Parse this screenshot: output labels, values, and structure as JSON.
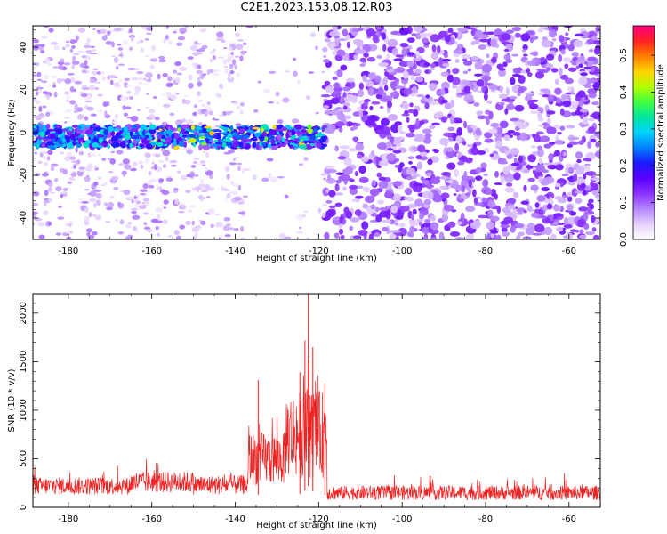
{
  "title": "C2E1.2023.153.08.12.R03",
  "colors": {
    "snr_line": "#ee2222",
    "colormap": [
      "#ffffff",
      "#e6d2ff",
      "#b585ff",
      "#8a33ff",
      "#5a00ff",
      "#1a1aff",
      "#0080ff",
      "#00d2ff",
      "#00e6a0",
      "#40ff40",
      "#b4ff00",
      "#ffd400",
      "#ff7f00",
      "#ff2020",
      "#ff0080"
    ]
  },
  "chart_data": [
    {
      "type": "heatmap",
      "xlabel": "Height of straight line (km)",
      "ylabel": "Frequency (Hz)",
      "xlim": [
        -188.5,
        -52.5
      ],
      "ylim": [
        -50,
        50
      ],
      "x_ticks": [
        -180,
        -160,
        -140,
        -120,
        -100,
        -80,
        -60
      ],
      "x_tick_labels": [
        "-180",
        "-160",
        "-140",
        "-120",
        "-100",
        "-80",
        "-60"
      ],
      "y_ticks": [
        -40,
        -20,
        0,
        20,
        40
      ],
      "y_tick_labels": [
        "-40",
        "-20",
        "0",
        "20",
        "40"
      ],
      "colorbar": {
        "label": "Normalized spectral amplitude",
        "range": [
          0,
          0.58
        ],
        "ticks": [
          0.0,
          0.1,
          0.2,
          0.3,
          0.4,
          0.5
        ],
        "tick_labels": [
          "0.0",
          "0.1",
          "0.2",
          "0.3",
          "0.4",
          "0.5"
        ]
      },
      "features": {
        "signal_band": {
          "x_start": -188.5,
          "x_end": -118.5,
          "freq_center": -2,
          "freq_halfwidth": 5,
          "typical_amplitude": 0.28,
          "peak_amplitude": 0.45
        },
        "clear_gap": {
          "x_start": -138,
          "x_end": -119
        },
        "sparse_region_amplitude": 0.06,
        "dense_region": {
          "x_start": -118.5,
          "x_end": -52.5,
          "typical_amplitude": 0.1
        }
      }
    },
    {
      "type": "line",
      "xlabel": "Height of straight line (km)",
      "ylabel": "SNR (10 * v/v)",
      "xlim": [
        -188.5,
        -52.5
      ],
      "ylim": [
        0,
        2200
      ],
      "x_ticks": [
        -180,
        -160,
        -140,
        -120,
        -100,
        -80,
        -60
      ],
      "x_tick_labels": [
        "-180",
        "-160",
        "-140",
        "-120",
        "-100",
        "-80",
        "-60"
      ],
      "y_ticks": [
        0,
        500,
        1000,
        1500,
        2000
      ],
      "y_tick_labels": [
        "0",
        "500",
        "1000",
        "1500",
        "2000"
      ],
      "segments": [
        {
          "x_start": -188.5,
          "x_end": -165,
          "baseline": 220,
          "spread": 180,
          "max": 480
        },
        {
          "x_start": -165,
          "x_end": -150,
          "baseline": 260,
          "spread": 220,
          "max": 650
        },
        {
          "x_start": -150,
          "x_end": -137,
          "baseline": 230,
          "spread": 200,
          "max": 550
        },
        {
          "x_start": -137,
          "x_end": -128,
          "baseline": 500,
          "spread": 550,
          "max": 1300
        },
        {
          "x_start": -128,
          "x_end": -118,
          "baseline": 750,
          "spread": 900,
          "max": 2200
        },
        {
          "x_start": -118,
          "x_end": -52.5,
          "baseline": 150,
          "spread": 150,
          "max": 390
        }
      ],
      "peaks": [
        {
          "x": -134.5,
          "y": 1310
        },
        {
          "x": -124.5,
          "y": 1390
        },
        {
          "x": -123.3,
          "y": 1720
        },
        {
          "x": -122.5,
          "y": 2200
        },
        {
          "x": -121.4,
          "y": 1650
        },
        {
          "x": -118.5,
          "y": 1270
        }
      ]
    }
  ]
}
